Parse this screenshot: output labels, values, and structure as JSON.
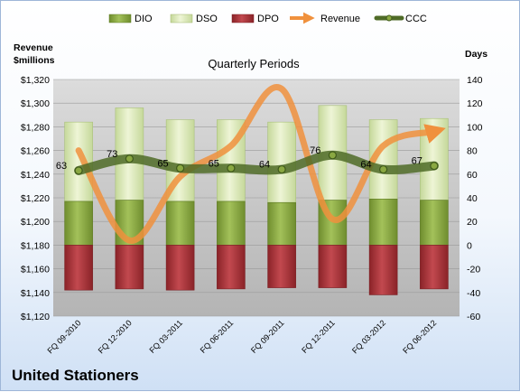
{
  "chart_data": {
    "type": "bar",
    "title": "Quarterly Periods",
    "company": "United Stationers",
    "left_axis_label_line1": "Revenue",
    "left_axis_label_line2": "$millions",
    "right_axis_label": "Days",
    "categories": [
      "FQ 09-2010",
      "FQ 12-2010",
      "FQ 03-2011",
      "FQ 06-2011",
      "FQ 09-2011",
      "FQ 12-2011",
      "FQ 03-2012",
      "FQ 06-2012"
    ],
    "series": [
      {
        "name": "DIO",
        "axis": "right",
        "kind": "stacked-bar",
        "color": "#8aa842",
        "values": [
          37,
          38,
          37,
          37,
          36,
          38,
          39,
          38
        ]
      },
      {
        "name": "DSO",
        "axis": "right",
        "kind": "stacked-bar",
        "color": "#dde9b7",
        "values": [
          67,
          78,
          69,
          69,
          68,
          80,
          67,
          69
        ]
      },
      {
        "name": "DPO",
        "axis": "right",
        "kind": "negative-bar",
        "color": "#a8343a",
        "values": [
          -38,
          -37,
          -38,
          -37,
          -36,
          -36,
          -42,
          -37
        ]
      },
      {
        "name": "Revenue",
        "axis": "left",
        "kind": "line",
        "color": "#f0913d",
        "values": [
          1260,
          1184,
          1238,
          1264,
          1312,
          1202,
          1264,
          1276
        ]
      },
      {
        "name": "CCC",
        "axis": "right",
        "kind": "line",
        "color": "#5a7a2c",
        "values": [
          63,
          73,
          65,
          65,
          64,
          76,
          64,
          67
        ]
      }
    ],
    "ccc_labels": [
      "63",
      "73",
      "65",
      "65",
      "64",
      "76",
      "64",
      "67"
    ],
    "left_axis": {
      "min": 1120,
      "max": 1320,
      "step": 20,
      "ticks": [
        "$1,120",
        "$1,140",
        "$1,160",
        "$1,180",
        "$1,200",
        "$1,220",
        "$1,240",
        "$1,260",
        "$1,280",
        "$1,300",
        "$1,320"
      ]
    },
    "right_axis": {
      "min": -60,
      "max": 140,
      "step": 20,
      "ticks": [
        "-60",
        "-40",
        "-20",
        "0",
        "20",
        "40",
        "60",
        "80",
        "100",
        "120",
        "140"
      ]
    },
    "legend_placement": "top",
    "grid": true
  }
}
